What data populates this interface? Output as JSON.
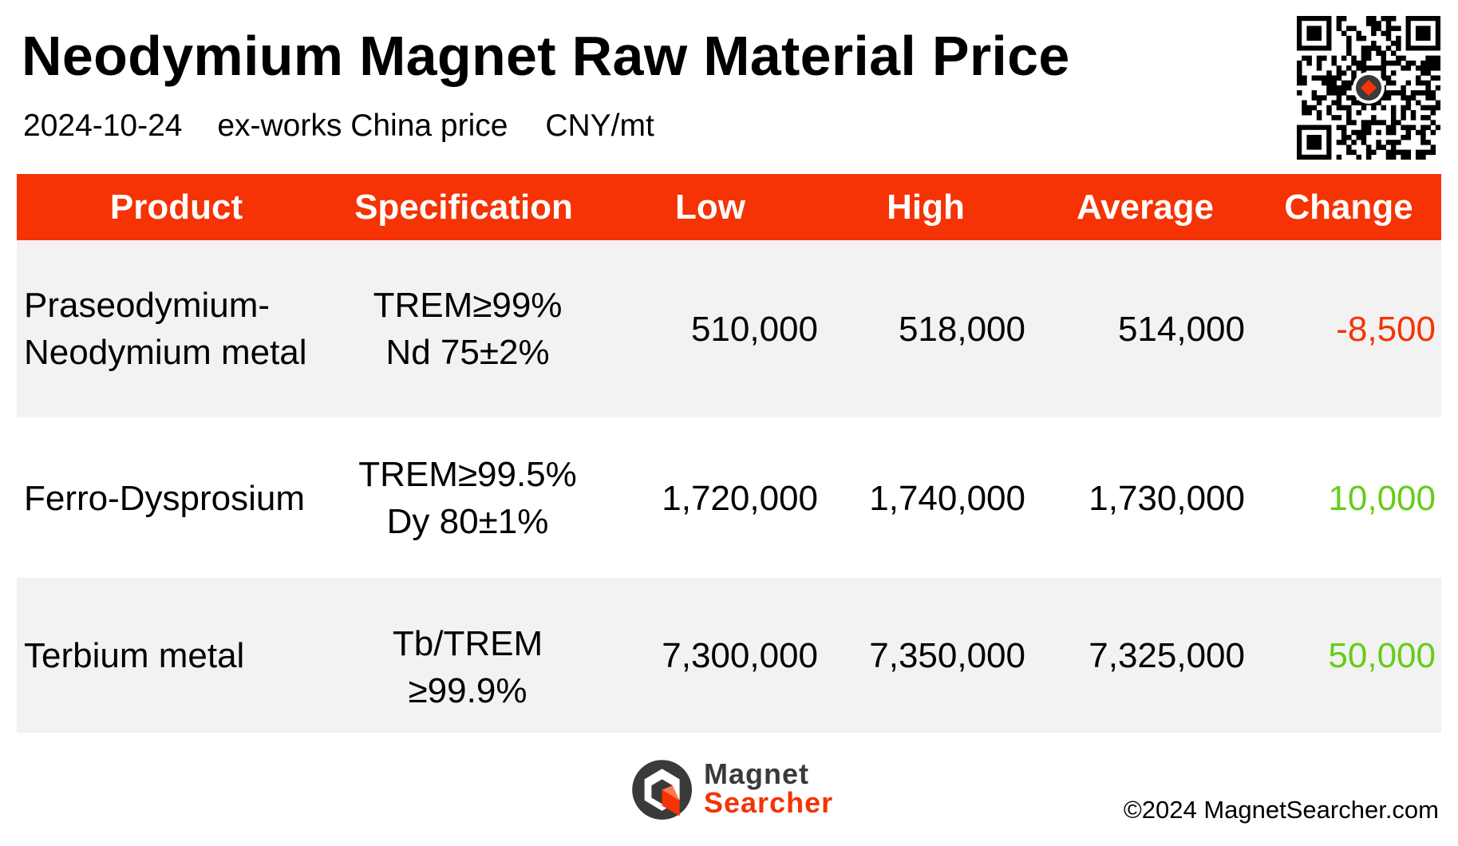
{
  "title": "Neodymium Magnet Raw Material Price",
  "subtitle": {
    "date": "2024-10-24",
    "basis": "ex-works China price",
    "unit": "CNY/mt"
  },
  "colors": {
    "header_bg": "#f53304",
    "negative": "#f53304",
    "positive": "#66cc1a",
    "row_shade": "#f2f2f2"
  },
  "icons": [
    "qr-code-icon",
    "magnet-searcher-logo-icon"
  ],
  "chart_data": {
    "type": "table",
    "columns": [
      "Product",
      "Specification",
      "Low",
      "High",
      "Average",
      "Change"
    ],
    "rows": [
      {
        "product": [
          "Praseodymium-",
          "Neodymium metal"
        ],
        "specification": [
          "TREM≥99%",
          "Nd 75±2%"
        ],
        "low": "510,000",
        "high": "518,000",
        "average": "514,000",
        "change": "-8,500"
      },
      {
        "product": [
          "Ferro-Dysprosium"
        ],
        "specification": [
          "TREM≥99.5%",
          "Dy 80±1%"
        ],
        "low": "1,720,000",
        "high": "1,740,000",
        "average": "1,730,000",
        "change": "10,000"
      },
      {
        "product": [
          "Terbium metal"
        ],
        "specification": [
          "Tb/TREM",
          "≥99.9%"
        ],
        "low": "7,300,000",
        "high": "7,350,000",
        "average": "7,325,000",
        "change": "50,000"
      }
    ]
  },
  "footer": {
    "logo_line1": "Magnet",
    "logo_line2": "Searcher",
    "copyright": "©2024 MagnetSearcher.com"
  }
}
